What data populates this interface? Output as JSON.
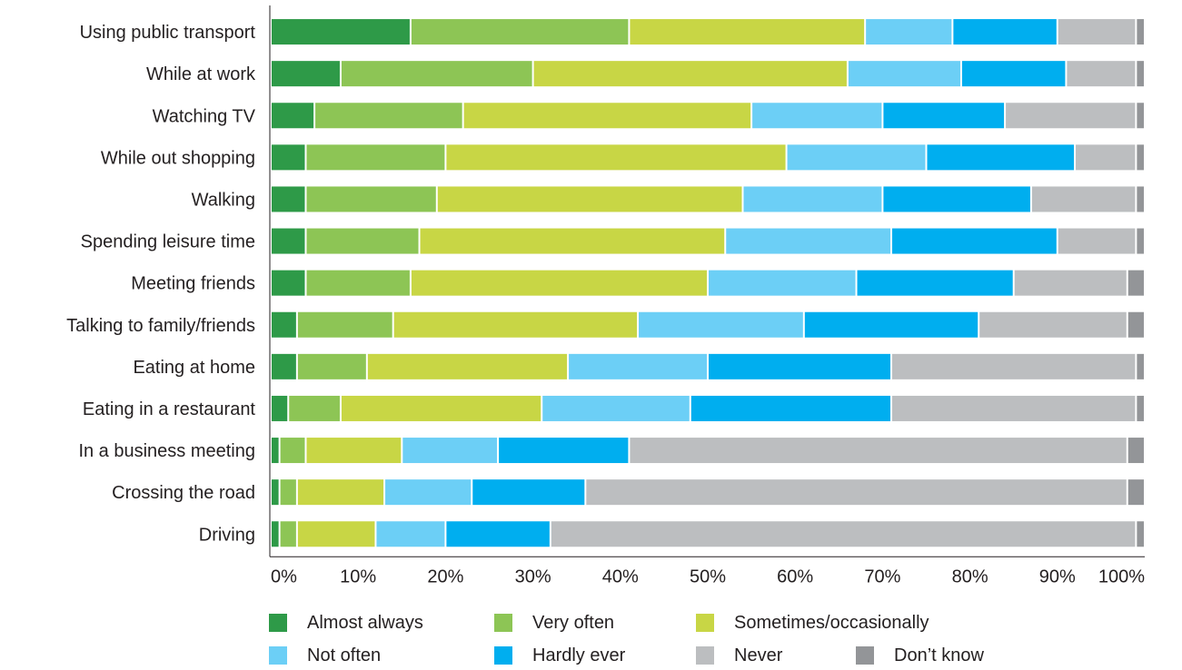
{
  "chart_data": {
    "type": "bar",
    "orientation": "horizontal",
    "stacked": true,
    "categories": [
      "Using public transport",
      "While at work",
      "Watching TV",
      "While out shopping",
      "Walking",
      "Spending leisure time",
      "Meeting friends",
      "Talking to family/friends",
      "Eating at home",
      "Eating in a restaurant",
      "In a business meeting",
      "Crossing the road",
      "Driving"
    ],
    "series": [
      {
        "name": "Almost always",
        "color": "#2e9a48",
        "values": [
          16,
          8,
          5,
          4,
          4,
          4,
          4,
          3,
          3,
          2,
          1,
          1,
          1
        ]
      },
      {
        "name": "Very often",
        "color": "#8dc555",
        "values": [
          25,
          22,
          17,
          16,
          15,
          13,
          12,
          11,
          8,
          6,
          3,
          2,
          2
        ]
      },
      {
        "name": "Sometimes/occasionally",
        "color": "#c8d645",
        "values": [
          27,
          36,
          33,
          39,
          35,
          35,
          34,
          28,
          23,
          23,
          11,
          10,
          9
        ]
      },
      {
        "name": "Not often",
        "color": "#6ccff6",
        "values": [
          10,
          13,
          15,
          16,
          16,
          19,
          17,
          19,
          16,
          17,
          11,
          10,
          8
        ]
      },
      {
        "name": "Hardly ever",
        "color": "#00aeef",
        "values": [
          12,
          12,
          14,
          17,
          17,
          19,
          18,
          20,
          21,
          23,
          15,
          13,
          12
        ]
      },
      {
        "name": "Never",
        "color": "#bcbec0",
        "values": [
          9,
          8,
          15,
          7,
          12,
          9,
          13,
          17,
          28,
          28,
          57,
          62,
          67
        ]
      },
      {
        "name": "Don’t know",
        "color": "#939598",
        "values": [
          1,
          1,
          1,
          1,
          1,
          1,
          2,
          2,
          1,
          1,
          2,
          2,
          1
        ]
      }
    ],
    "xticks": [
      "0%",
      "10%",
      "20%",
      "30%",
      "40%",
      "50%",
      "60%",
      "70%",
      "80%",
      "90%",
      "100%"
    ],
    "xlim": [
      0,
      100
    ],
    "title": "",
    "xlabel": "",
    "ylabel": "",
    "grid": false,
    "legend_position": "bottom"
  }
}
